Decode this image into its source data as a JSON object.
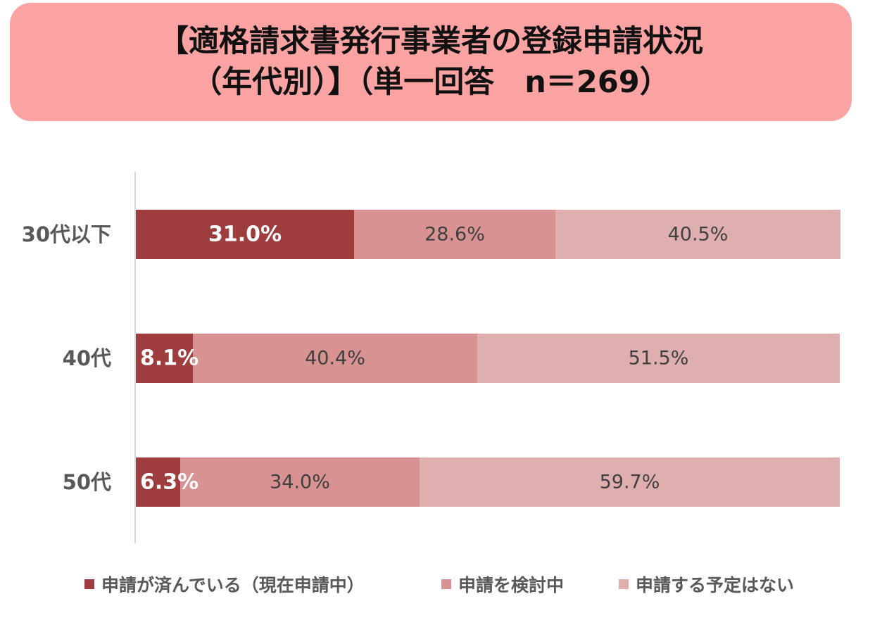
{
  "header": {
    "title_line1": "【適格請求書発行事業者の登録申請状況",
    "title_line2": "（年代別）】（単一回答　n＝269）"
  },
  "colors": {
    "title_bg": "#fba2a2",
    "axis": "#d9d9d9",
    "category_text": "#595959"
  },
  "chart_data": {
    "type": "bar",
    "orientation": "horizontal",
    "stacked": true,
    "title": "【適格請求書発行事業者の登録申請状況（年代別）】（単一回答　n＝269）",
    "categories": [
      "30代以下",
      "40代",
      "50代"
    ],
    "series": [
      {
        "name": "申請が済んでいる（現在申請中）",
        "values": [
          31.0,
          8.1,
          6.3
        ],
        "labels": [
          "31.0%",
          "8.1%",
          "6.3%"
        ],
        "color": "#9e3c3e",
        "label_color": "#ffffff",
        "label_bold": true
      },
      {
        "name": "申請を検討中",
        "values": [
          28.6,
          40.4,
          34.0
        ],
        "labels": [
          "28.6%",
          "40.4%",
          "34.0%"
        ],
        "color": "#d89291",
        "label_color": "#404040",
        "label_bold": false
      },
      {
        "name": "申請する予定はない",
        "values": [
          40.5,
          51.5,
          59.7
        ],
        "labels": [
          "40.5%",
          "51.5%",
          "59.7%"
        ],
        "color": "#dfaeae",
        "label_color": "#404040",
        "label_bold": false
      }
    ],
    "xlim": [
      0,
      100
    ],
    "unit": "%",
    "grid": false,
    "legend": "bottom"
  }
}
